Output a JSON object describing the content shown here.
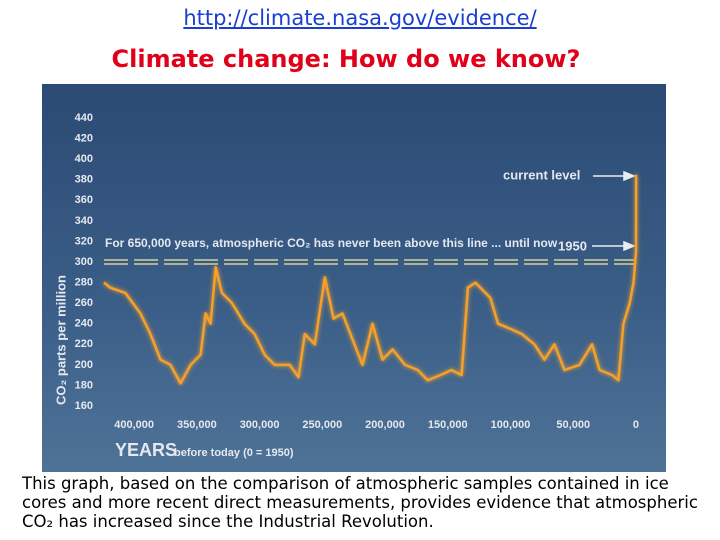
{
  "header": {
    "url": "http://climate.nasa.gov/evidence/",
    "title": "Climate change: How do we know?"
  },
  "chart_data": {
    "type": "line",
    "y_label": "CO₂ parts per million",
    "x_label": "YEARS",
    "x_label_note": "before today (0 = 1950)",
    "annotations": [
      "current level",
      "For 650,000 years, atmospheric CO₂ has never been above this line ... until now",
      "1950"
    ],
    "threshold": 300,
    "color": "#f5a02a",
    "x": [
      424000,
      419000,
      407000,
      395000,
      387000,
      379000,
      371000,
      363000,
      355000,
      347000,
      343000,
      339000,
      335000,
      330000,
      322000,
      312000,
      304000,
      296000,
      288000,
      276000,
      269000,
      264000,
      256000,
      248000,
      241000,
      234000,
      226000,
      218000,
      210000,
      202000,
      194000,
      184000,
      174000,
      166000,
      156000,
      147000,
      139000,
      134000,
      128000,
      116000,
      110000,
      100000,
      91000,
      81000,
      73000,
      65000,
      57000,
      45000,
      35000,
      29000,
      19000,
      14000,
      10000,
      5000,
      2000,
      0,
      -60
    ],
    "values": [
      280,
      275,
      270,
      250,
      230,
      205,
      200,
      182,
      200,
      210,
      250,
      240,
      295,
      270,
      260,
      240,
      230,
      210,
      200,
      200,
      188,
      230,
      220,
      285,
      245,
      250,
      225,
      200,
      240,
      205,
      215,
      200,
      195,
      185,
      190,
      195,
      190,
      275,
      280,
      265,
      240,
      235,
      230,
      220,
      205,
      220,
      195,
      200,
      220,
      195,
      190,
      185,
      240,
      260,
      280,
      310,
      385
    ],
    "xlim": [
      424000,
      -1600
    ],
    "xticks": [
      {
        "value": 400000,
        "label": "400,000"
      },
      {
        "value": 350000,
        "label": "350,000"
      },
      {
        "value": 300000,
        "label": "300,000"
      },
      {
        "value": 250000,
        "label": "250,000"
      },
      {
        "value": 200000,
        "label": "200,000"
      },
      {
        "value": 150000,
        "label": "150,000"
      },
      {
        "value": 100000,
        "label": "100,000"
      },
      {
        "value": 50000,
        "label": "50,000"
      },
      0
    ],
    "ylim": [
      160,
      440
    ],
    "yticks": [
      160,
      180,
      200,
      220,
      240,
      260,
      280,
      300,
      320,
      340,
      360,
      380,
      400,
      420,
      440
    ]
  },
  "caption": "This graph, based on the comparison of atmospheric samples contained in ice cores and more recent direct measurements, provides evidence that atmospheric CO₂ has increased since the Industrial Revolution."
}
